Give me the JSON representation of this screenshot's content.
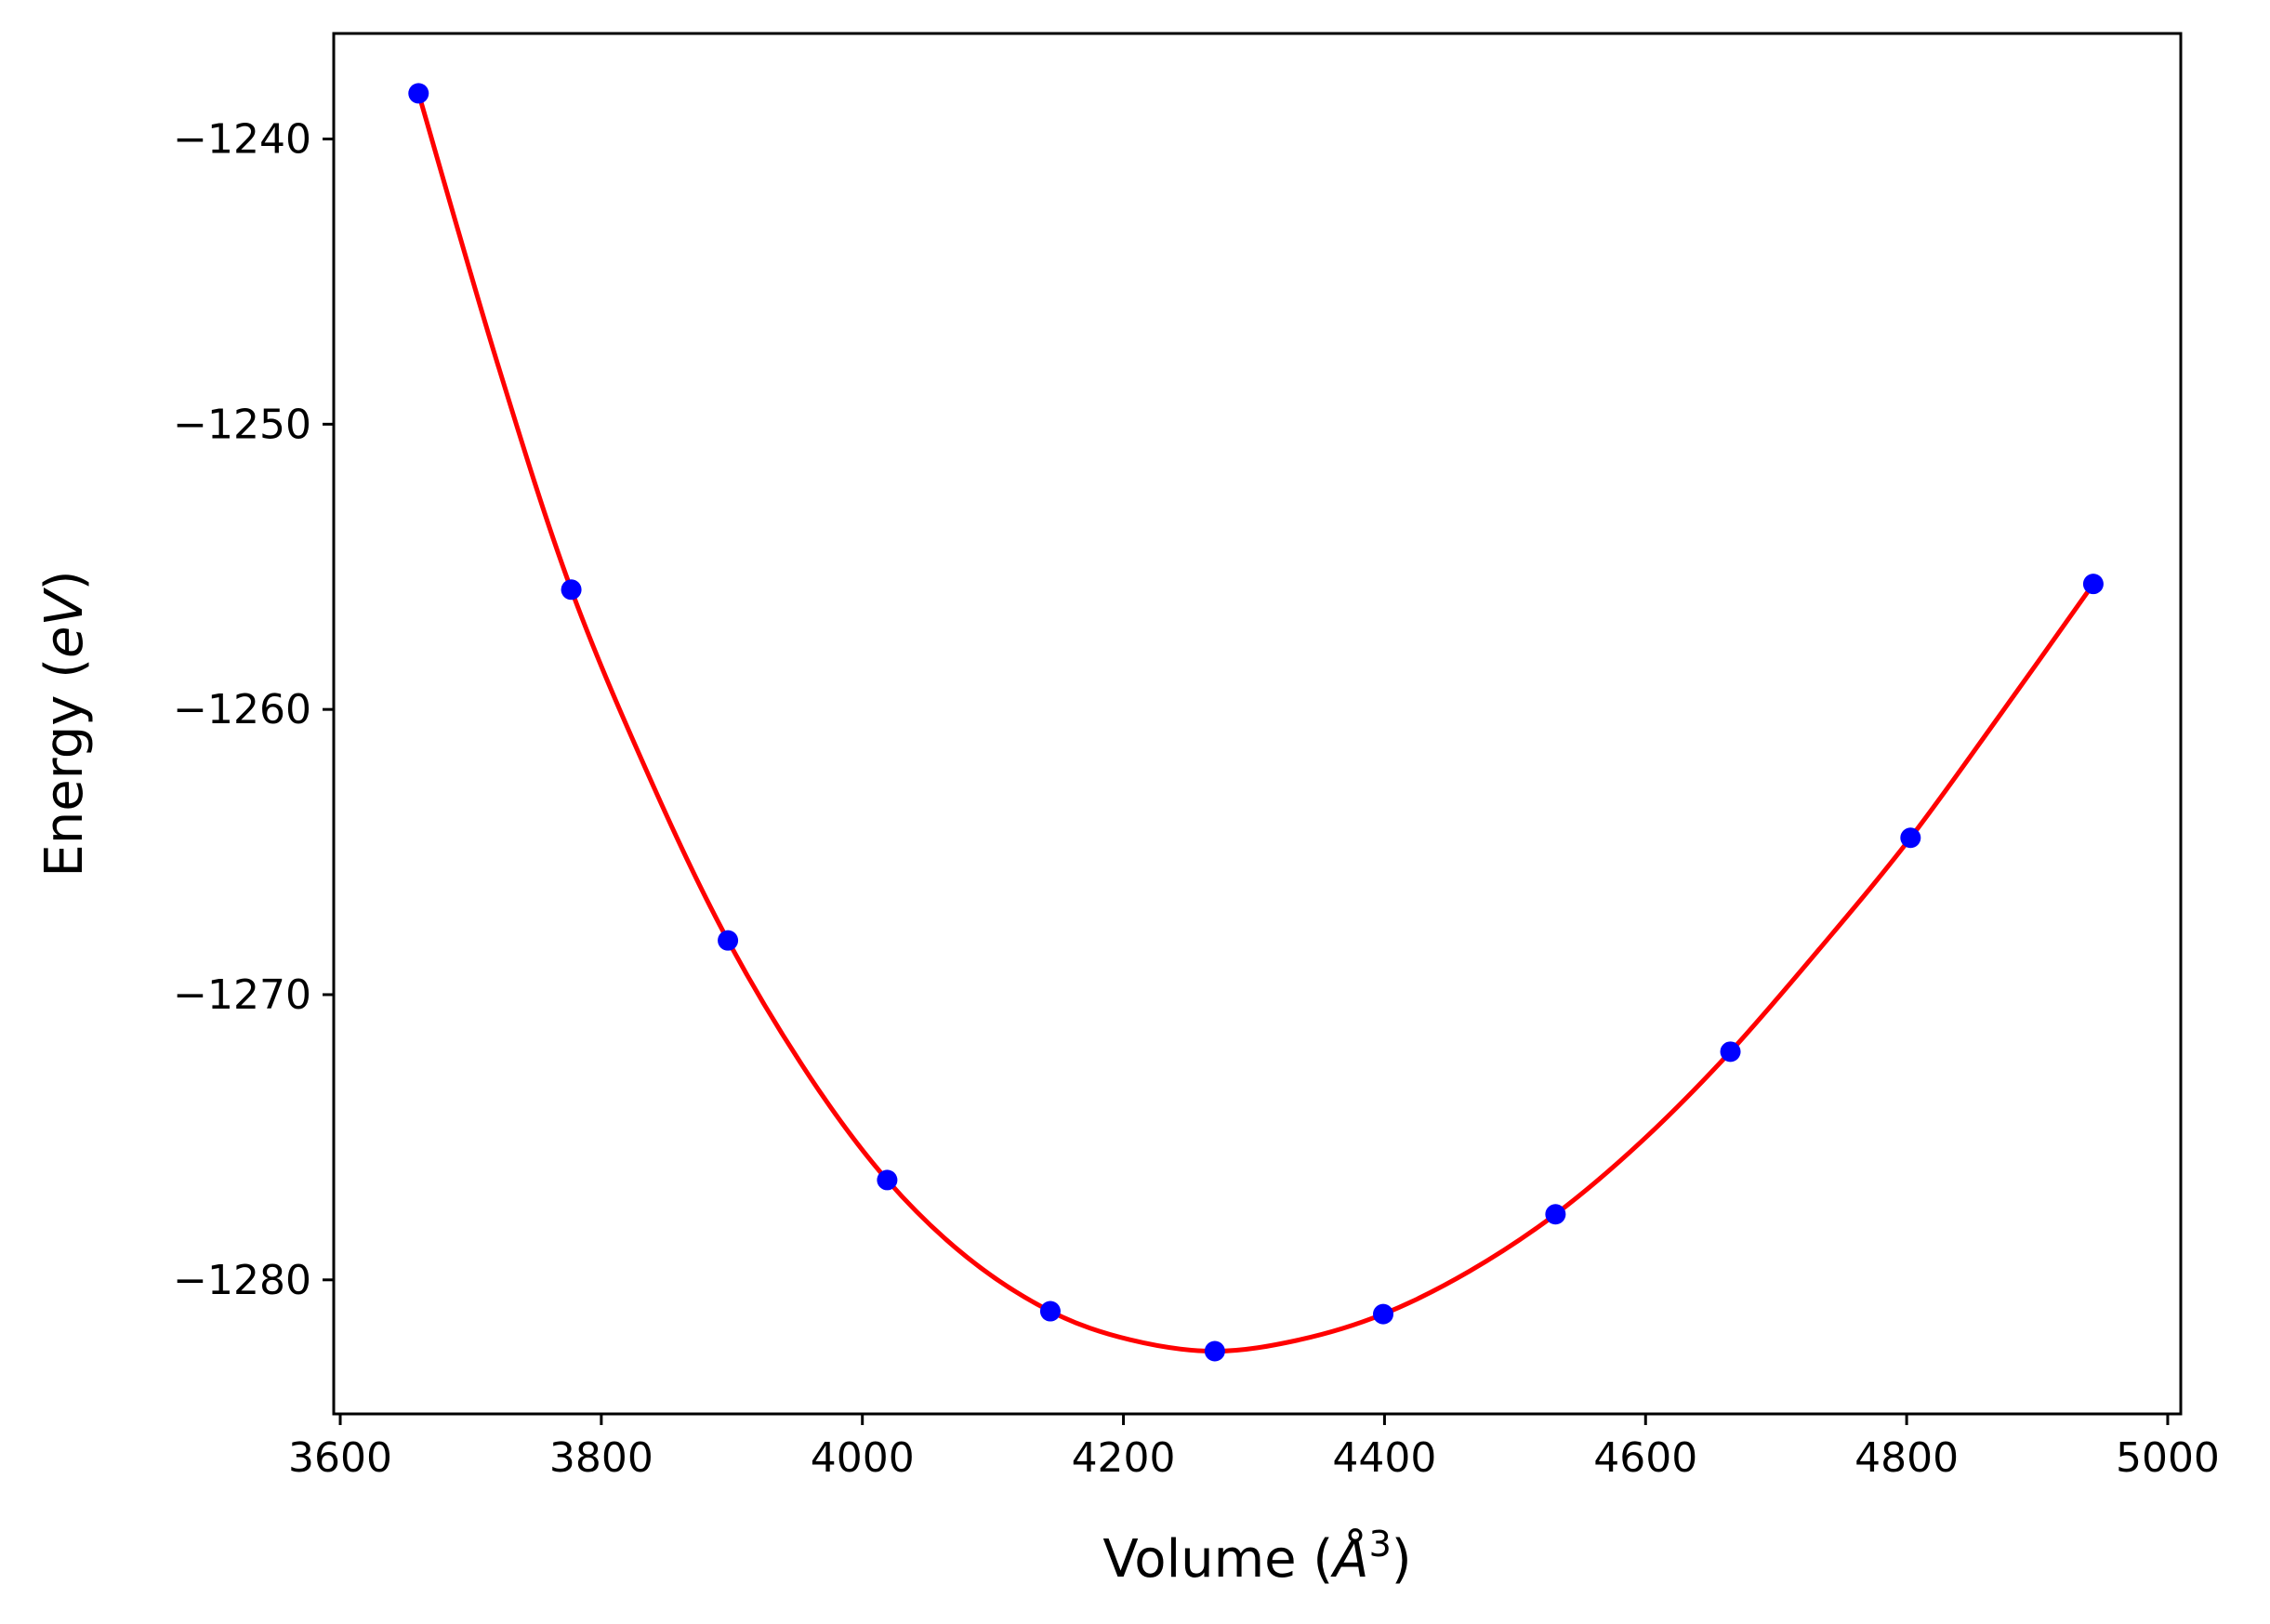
{
  "chart_data": {
    "type": "scatter",
    "xlabel": "Volume",
    "xlabel_unit": "Å",
    "xlabel_exponent": "3",
    "ylabel": "Energy",
    "ylabel_unit": "eV",
    "xlim": [
      3595,
      5010
    ],
    "ylim": [
      -1284.7,
      -1236.3
    ],
    "x_ticks": [
      3600,
      3800,
      4000,
      4200,
      4400,
      4600,
      4800,
      5000
    ],
    "x_tick_labels": [
      "3600",
      "3800",
      "4000",
      "4200",
      "4400",
      "4600",
      "4800",
      "5000"
    ],
    "y_ticks": [
      -1240,
      -1250,
      -1260,
      -1270,
      -1280
    ],
    "y_tick_labels": [
      "−1240",
      "−1250",
      "−1260",
      "−1270",
      "−1280"
    ],
    "grid": false,
    "series": [
      {
        "kind": "points",
        "color": "#0000ff",
        "x": [
          3660,
          3777,
          3897,
          4019,
          4144,
          4270,
          4399,
          4531,
          4665,
          4803,
          4943
        ],
        "y": [
          -1238.4,
          -1255.8,
          -1268.1,
          -1276.5,
          -1281.1,
          -1282.5,
          -1281.2,
          -1277.7,
          -1272.0,
          -1264.5,
          -1255.6
        ]
      },
      {
        "kind": "fit-curve",
        "color": "#ff0000",
        "x": [
          3660,
          3720,
          3777,
          3840,
          3897,
          3960,
          4019,
          4080,
          4144,
          4205,
          4270,
          4335,
          4399,
          4465,
          4531,
          4598,
          4665,
          4735,
          4803,
          4873,
          4943
        ],
        "y": [
          -1238.4,
          -1247.8,
          -1255.8,
          -1262.7,
          -1268.1,
          -1272.9,
          -1276.5,
          -1279.2,
          -1281.1,
          -1282.1,
          -1282.5,
          -1282.1,
          -1281.2,
          -1279.7,
          -1277.7,
          -1275.1,
          -1272.0,
          -1268.3,
          -1264.5,
          -1260.1,
          -1255.6
        ]
      }
    ]
  }
}
